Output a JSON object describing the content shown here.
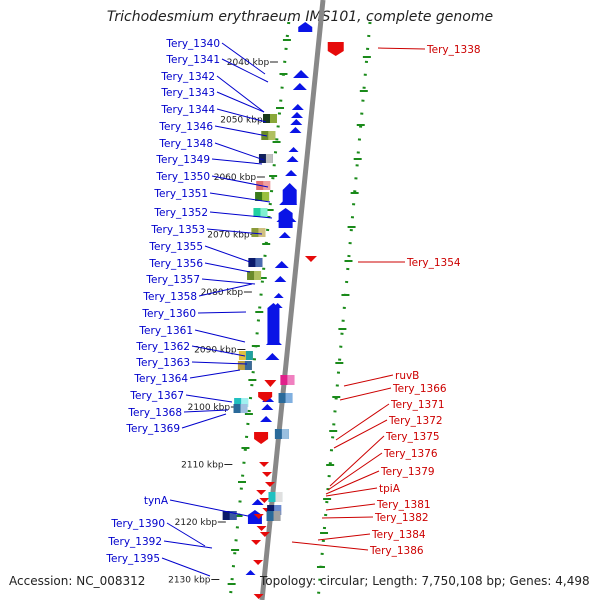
{
  "title": "Trichodesmium erythraeum IMS101, complete genome",
  "footer": {
    "accession": "Accession: NC_008312",
    "topology": "Topology: circular; Length: 7,750,108 bp; Genes: 4,498"
  },
  "colors": {
    "forward": "#0a14e6",
    "reverse": "#e60a0a",
    "left_label": "#0000cc",
    "right_label": "#cc0000",
    "tick": "#1a8a1a",
    "backbone": "#888888"
  },
  "scale_ticks": [
    "2040 kbp",
    "2050 kbp",
    "2060 kbp",
    "2070 kbp",
    "2080 kbp",
    "2090 kbp",
    "2100 kbp",
    "2110 kbp",
    "2120 kbp",
    "2130 kbp"
  ],
  "left_genes": [
    "Tery_1340",
    "Tery_1341",
    "Tery_1342",
    "Tery_1343",
    "Tery_1344",
    "Tery_1346",
    "Tery_1348",
    "Tery_1349",
    "Tery_1350",
    "Tery_1351",
    "Tery_1352",
    "Tery_1353",
    "Tery_1355",
    "Tery_1356",
    "Tery_1357",
    "Tery_1358",
    "Tery_1360",
    "Tery_1361",
    "Tery_1362",
    "Tery_1363",
    "Tery_1364",
    "Tery_1367",
    "Tery_1368",
    "Tery_1369",
    "tynA",
    "Tery_1390",
    "Tery_1392",
    "Tery_1395"
  ],
  "right_genes": [
    "Tery_1338",
    "Tery_1354",
    "ruvB",
    "Tery_1366",
    "Tery_1371",
    "Tery_1372",
    "Tery_1375",
    "Tery_1376",
    "Tery_1379",
    "tpiA",
    "Tery_1381",
    "Tery_1382",
    "Tery_1384",
    "Tery_1386"
  ]
}
